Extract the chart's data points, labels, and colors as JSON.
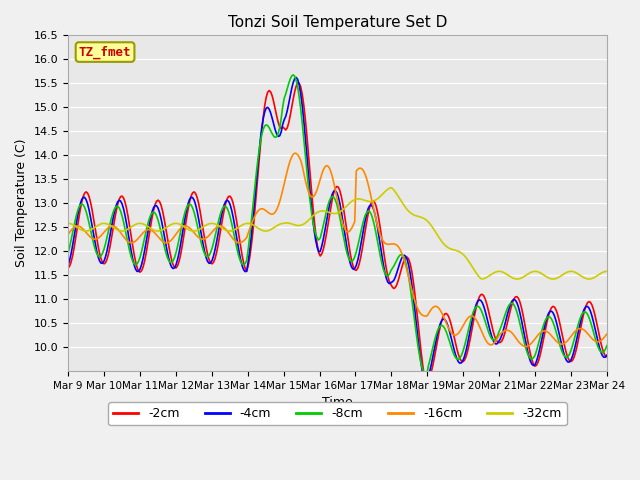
{
  "title": "Tonzi Soil Temperature Set D",
  "xlabel": "Time",
  "ylabel": "Soil Temperature (C)",
  "ylim": [
    9.5,
    16.5
  ],
  "yticks": [
    10.0,
    10.5,
    11.0,
    11.5,
    12.0,
    12.5,
    13.0,
    13.5,
    14.0,
    14.5,
    15.0,
    15.5,
    16.0,
    16.5
  ],
  "x_tick_labels": [
    "Mar 9",
    "Mar 10",
    "Mar 11",
    "Mar 12",
    "Mar 13",
    "Mar 14",
    "Mar 15",
    "Mar 16",
    "Mar 17",
    "Mar 18",
    "Mar 19",
    "Mar 20",
    "Mar 21",
    "Mar 22",
    "Mar 23",
    "Mar 24"
  ],
  "series_labels": [
    "-2cm",
    "-4cm",
    "-8cm",
    "-16cm",
    "-32cm"
  ],
  "series_colors": [
    "#ff0000",
    "#0000ff",
    "#00cc00",
    "#ff8800",
    "#cccc00"
  ],
  "line_width": 1.2,
  "bg_color": "#e8e8e8",
  "legend_text": "TZ_fmet",
  "legend_text_color": "#cc0000",
  "legend_bg": "#ffff99",
  "legend_border": "#999900",
  "fig_facecolor": "#f0f0f0"
}
